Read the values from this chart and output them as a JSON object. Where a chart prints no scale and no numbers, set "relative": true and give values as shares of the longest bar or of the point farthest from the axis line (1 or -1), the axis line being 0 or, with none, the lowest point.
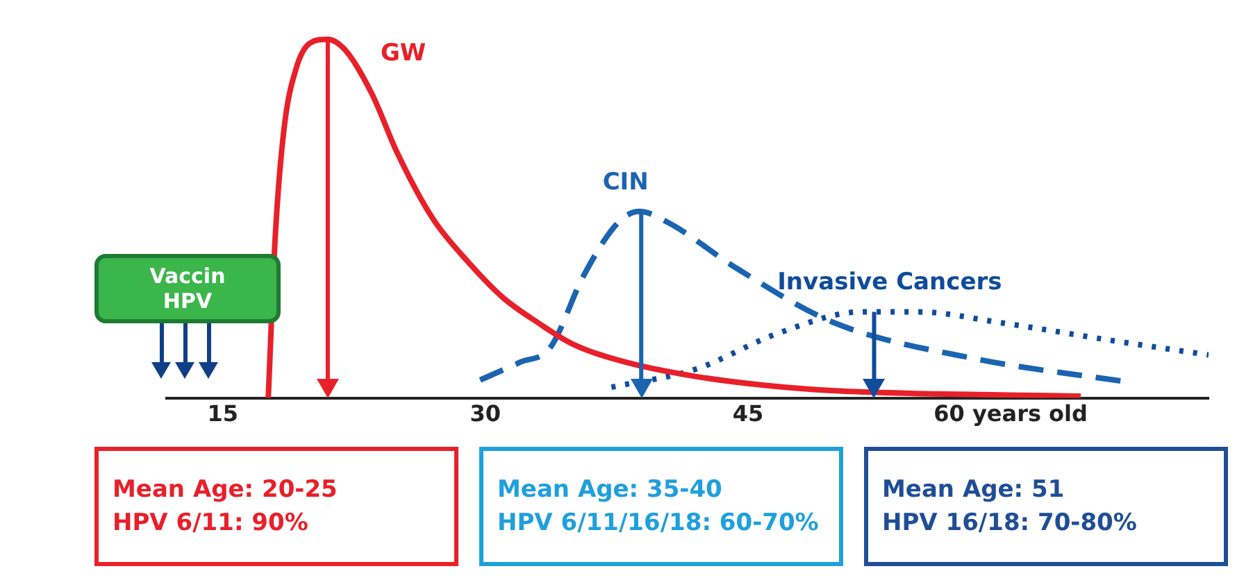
{
  "chart_data": {
    "type": "line",
    "relative": true,
    "xlim": [
      11.8,
      71.3
    ],
    "xticks": [
      15,
      30,
      45,
      {
        "value": 60,
        "label": "60 years old"
      }
    ],
    "tick_labels": "x",
    "legend": false,
    "grid": false,
    "series": [
      {
        "name": "GW",
        "color": "#e8202a",
        "line_style": "solid",
        "x": [
          17.6,
          18,
          18.5,
          19.2,
          20,
          21,
          22,
          23.5,
          25,
          27,
          29,
          31,
          33,
          35,
          38,
          42,
          46,
          50,
          55,
          60,
          64
        ],
        "values": [
          0,
          0.45,
          0.75,
          0.92,
          0.99,
          1,
          0.97,
          0.85,
          0.68,
          0.5,
          0.38,
          0.28,
          0.21,
          0.15,
          0.1,
          0.06,
          0.035,
          0.02,
          0.012,
          0.008,
          0.005
        ]
      },
      {
        "name": "CIN",
        "color": "#1a64b0",
        "line_style": "dashed",
        "x": [
          29.7,
          32,
          33.7,
          35.6,
          37.6,
          38.8,
          40.4,
          44.4,
          49.9,
          57.9,
          66.6
        ],
        "values": [
          0.05,
          0.1,
          0.14,
          0.34,
          0.49,
          0.52,
          0.49,
          0.36,
          0.21,
          0.11,
          0.045
        ]
      },
      {
        "name": "Invasive Cancers",
        "color": "#0f4c9a",
        "line_style": "dotted",
        "x": [
          37.2,
          42,
          46.7,
          51.5,
          54.7,
          59.4,
          65.8,
          71.3
        ],
        "values": [
          0.03,
          0.08,
          0.18,
          0.24,
          0.24,
          0.21,
          0.16,
          0.12
        ]
      }
    ],
    "ref_lines": [
      {
        "axis": "x",
        "value": 21,
        "color": "#e8202a"
      },
      {
        "axis": "x",
        "value": 38.9,
        "color": "#1a64b0"
      },
      {
        "axis": "x",
        "value": 52.2,
        "color": "#0f4c9a"
      }
    ],
    "annotations": [
      "Vaccin\nHPV",
      "Mean Age: 20-25\nHPV 6/11: 90%",
      "Mean Age: 35-40\nHPV 6/11/16/18: 60-70%",
      "Mean Age: 51\nHPV 16/18: 70-80%"
    ]
  }
}
